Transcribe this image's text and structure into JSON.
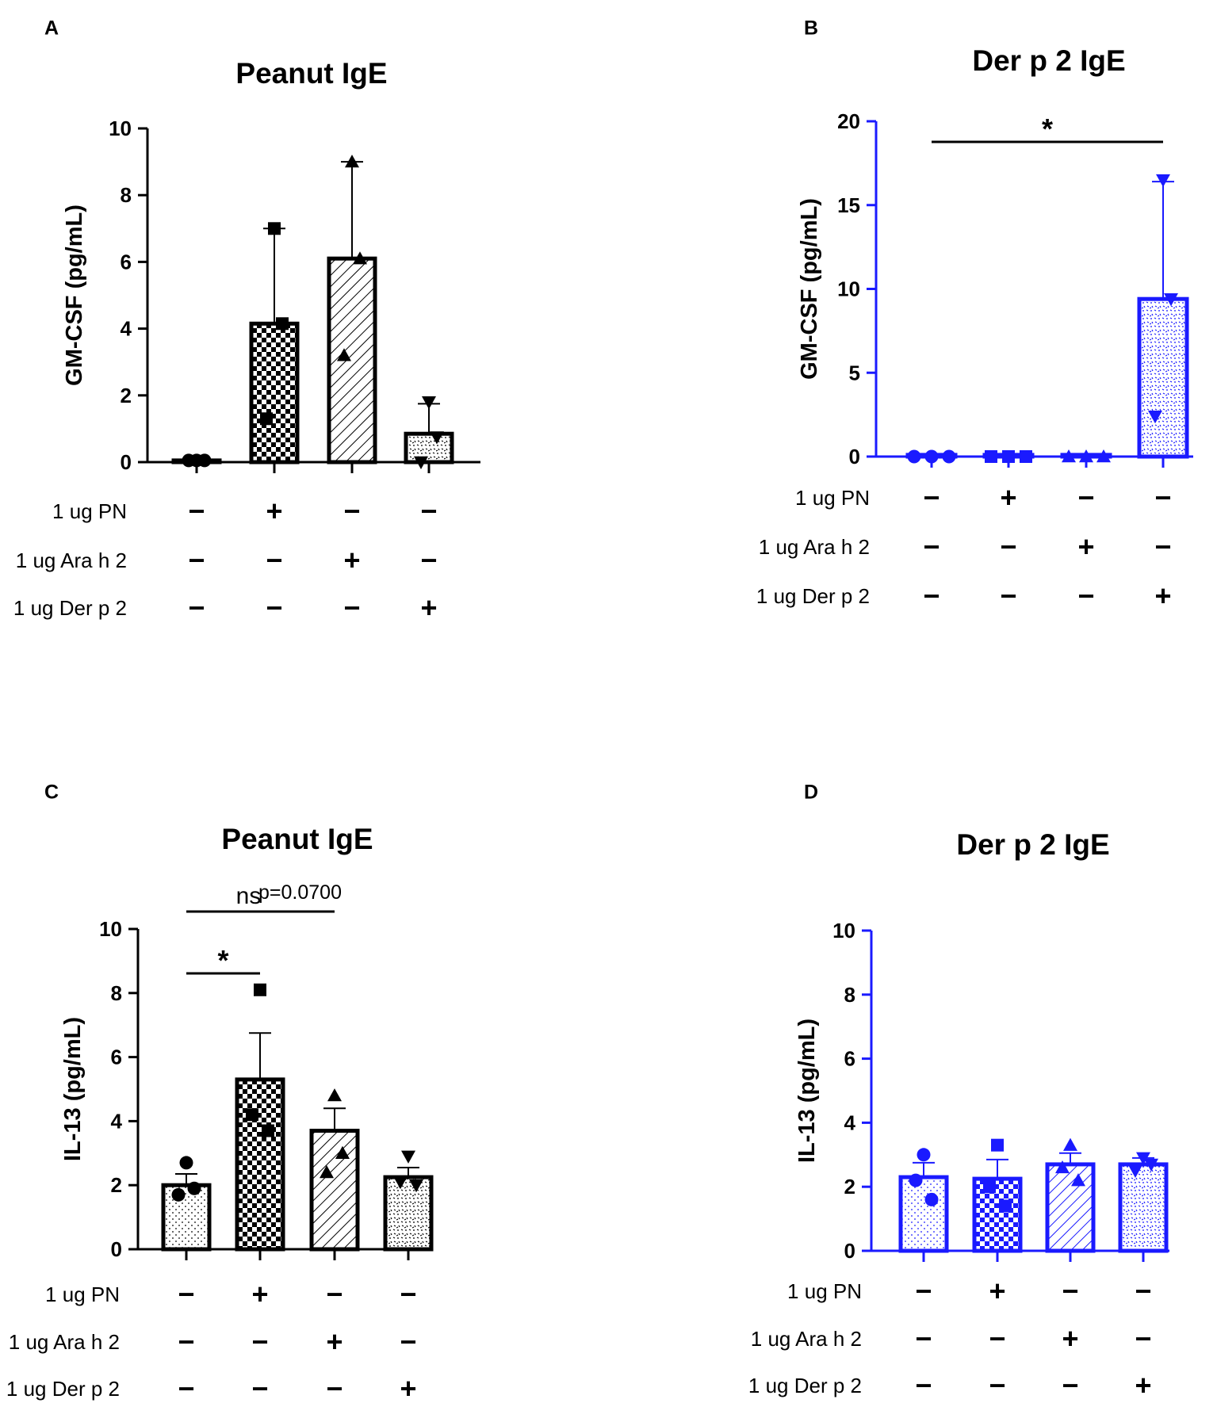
{
  "chart_data": [
    {
      "panel": "A",
      "type": "bar",
      "title": "Peanut IgE",
      "ylabel": "GM-CSF (pg/mL)",
      "ylim": [
        0,
        10
      ],
      "yticks": [
        "0",
        "2",
        "4",
        "6",
        "8",
        "10"
      ],
      "color": "#000000",
      "marker": [
        "circle",
        "square",
        "triangle-up",
        "triangle-down"
      ],
      "pattern": [
        "none",
        "checker",
        "diagonal",
        "speckle"
      ],
      "values": [
        0.05,
        4.15,
        6.1,
        0.85
      ],
      "errors": [
        0,
        2.85,
        2.9,
        0.9
      ],
      "points": [
        [
          0.05,
          0.05,
          0.05
        ],
        [
          7.0,
          1.3,
          4.15
        ],
        [
          9.0,
          3.2,
          6.1
        ],
        [
          1.8,
          0.0,
          0.75
        ]
      ],
      "conditions": {
        "labels": [
          "1 ug PN",
          "1 ug  Ara h 2",
          "1 ug Der p 2"
        ],
        "rows": [
          [
            "−",
            "+",
            "−",
            "−"
          ],
          [
            "−",
            "−",
            "+",
            "−"
          ],
          [
            "−",
            "−",
            "−",
            "+"
          ]
        ]
      },
      "annotations": []
    },
    {
      "panel": "B",
      "type": "bar",
      "title": "Der p 2 IgE",
      "ylabel": "GM-CSF (pg/mL)",
      "ylim": [
        0,
        20
      ],
      "yticks": [
        "0",
        "5",
        "10",
        "15",
        "20"
      ],
      "color": "#1a1aff",
      "marker": [
        "circle",
        "square",
        "triangle-up",
        "triangle-down"
      ],
      "pattern": [
        "none",
        "none",
        "none",
        "speckle"
      ],
      "values": [
        0.1,
        0.1,
        0.1,
        9.4
      ],
      "errors": [
        0,
        0,
        0,
        7.0
      ],
      "points": [
        [
          0.0,
          0.0,
          0.0
        ],
        [
          0.0,
          0.0,
          0.0
        ],
        [
          0.0,
          0.0,
          0.0
        ],
        [
          16.5,
          2.4,
          9.4
        ]
      ],
      "conditions": {
        "labels": [
          "1 ug PN",
          "1 ug  Ara h 2",
          "1 ug Der p 2"
        ],
        "rows": [
          [
            "−",
            "+",
            "−",
            "−"
          ],
          [
            "−",
            "−",
            "+",
            "−"
          ],
          [
            "−",
            "−",
            "−",
            "+"
          ]
        ]
      },
      "annotations": [
        {
          "from": 0,
          "to": 3,
          "label": "*",
          "p": ""
        }
      ]
    },
    {
      "panel": "C",
      "type": "bar",
      "title": "Peanut IgE",
      "ylabel": "IL-13 (pg/mL)",
      "ylim": [
        0,
        10
      ],
      "yticks": [
        "0",
        "2",
        "4",
        "6",
        "8",
        "10"
      ],
      "color": "#000000",
      "marker": [
        "circle",
        "square",
        "triangle-up",
        "triangle-down"
      ],
      "pattern": [
        "dots",
        "checker",
        "diagonal",
        "speckle"
      ],
      "values": [
        2.0,
        5.3,
        3.7,
        2.25
      ],
      "errors": [
        0.35,
        1.45,
        0.7,
        0.3
      ],
      "points": [
        [
          2.7,
          1.7,
          1.9
        ],
        [
          8.1,
          4.2,
          3.7
        ],
        [
          4.8,
          2.4,
          3.0
        ],
        [
          2.9,
          2.1,
          2.0
        ]
      ],
      "conditions": {
        "labels": [
          "1 ug PN",
          "1 ug  Ara h 2",
          "1 ug Der p 2"
        ],
        "rows": [
          [
            "−",
            "+",
            "−",
            "−"
          ],
          [
            "−",
            "−",
            "+",
            "−"
          ],
          [
            "−",
            "−",
            "−",
            "+"
          ]
        ]
      },
      "annotations": [
        {
          "from": 0,
          "to": 2,
          "label": "ns",
          "p": "p=0.0700"
        },
        {
          "from": 0,
          "to": 1,
          "label": "*",
          "p": ""
        }
      ]
    },
    {
      "panel": "D",
      "type": "bar",
      "title": "Der p 2 IgE",
      "ylabel": "IL-13 (pg/mL)",
      "ylim": [
        0,
        10
      ],
      "yticks": [
        "0",
        "2",
        "4",
        "6",
        "8",
        "10"
      ],
      "color": "#1a1aff",
      "marker": [
        "circle",
        "square",
        "triangle-up",
        "triangle-down"
      ],
      "pattern": [
        "dots",
        "checker",
        "diagonal",
        "speckle"
      ],
      "values": [
        2.3,
        2.25,
        2.7,
        2.7
      ],
      "errors": [
        0.45,
        0.6,
        0.35,
        0.2
      ],
      "points": [
        [
          3.0,
          2.2,
          1.6
        ],
        [
          3.3,
          2.0,
          1.4
        ],
        [
          3.3,
          2.6,
          2.2
        ],
        [
          2.9,
          2.5,
          2.7
        ]
      ],
      "conditions": {
        "labels": [
          "1 ug PN",
          "1 ug  Ara h 2",
          "1 ug Der p 2"
        ],
        "rows": [
          [
            "−",
            "+",
            "−",
            "−"
          ],
          [
            "−",
            "−",
            "+",
            "−"
          ],
          [
            "−",
            "−",
            "−",
            "+"
          ]
        ]
      },
      "annotations": []
    }
  ]
}
